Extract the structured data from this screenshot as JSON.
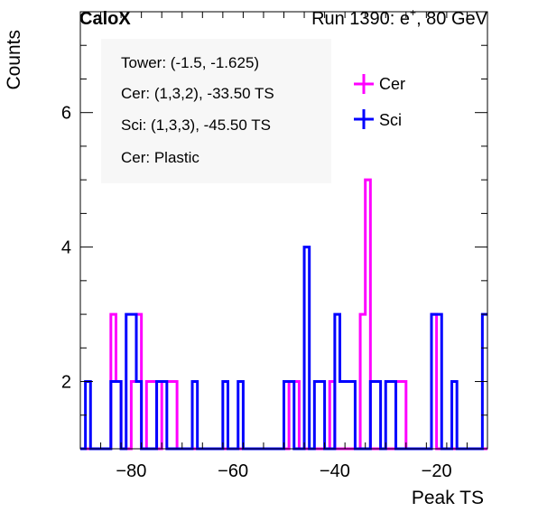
{
  "header": {
    "experiment": "CaloX",
    "run_info_main": "Run 1390: e",
    "run_info_sup": "+",
    "run_info_tail": ", 80 GeV"
  },
  "info_box": {
    "lines": [
      "Tower: (-1.5, -1.625)",
      "Cer: (1,3,2), -33.50 TS",
      "Sci: (1,3,3), -45.50 TS",
      "Cer: Plastic"
    ]
  },
  "colors": {
    "cer": "#ff00ff",
    "sci": "#0000ff",
    "axis": "#000000"
  },
  "chart_data": {
    "type": "histogram",
    "xlabel": "Peak TS",
    "ylabel": "Counts",
    "xlim": [
      -90,
      -10
    ],
    "ylim": [
      1,
      7.5
    ],
    "bin_width": 1,
    "x_ticks": [
      -80,
      -60,
      -40,
      -20
    ],
    "x_tick_labels": [
      "−80",
      "−60",
      "−40",
      "−20"
    ],
    "y_ticks": [
      2,
      4,
      6
    ],
    "y_tick_labels": [
      "2",
      "4",
      "6"
    ],
    "legend_position": "top-right",
    "series": [
      {
        "name": "Cer",
        "color": "#ff00ff",
        "bins": [
          {
            "x": -84,
            "y": 3
          },
          {
            "x": -83,
            "y": 2
          },
          {
            "x": -80,
            "y": 2
          },
          {
            "x": -79,
            "y": 3
          },
          {
            "x": -77,
            "y": 2
          },
          {
            "x": -76,
            "y": 2
          },
          {
            "x": -74,
            "y": 2
          },
          {
            "x": -73,
            "y": 2
          },
          {
            "x": -72,
            "y": 2
          },
          {
            "x": -49,
            "y": 2
          },
          {
            "x": -48,
            "y": 2
          },
          {
            "x": -41,
            "y": 2
          },
          {
            "x": -35,
            "y": 3
          },
          {
            "x": -34,
            "y": 5
          },
          {
            "x": -28,
            "y": 2
          },
          {
            "x": -27,
            "y": 2
          },
          {
            "x": -21,
            "y": 3
          }
        ]
      },
      {
        "name": "Sci",
        "color": "#0000ff",
        "bins": [
          {
            "x": -89,
            "y": 2
          },
          {
            "x": -84,
            "y": 2
          },
          {
            "x": -83,
            "y": 2
          },
          {
            "x": -81,
            "y": 3
          },
          {
            "x": -80,
            "y": 3
          },
          {
            "x": -79,
            "y": 2
          },
          {
            "x": -75,
            "y": 2
          },
          {
            "x": -74,
            "y": 2
          },
          {
            "x": -68,
            "y": 2
          },
          {
            "x": -62,
            "y": 2
          },
          {
            "x": -59,
            "y": 2
          },
          {
            "x": -50,
            "y": 2
          },
          {
            "x": -49,
            "y": 2
          },
          {
            "x": -46,
            "y": 4
          },
          {
            "x": -44,
            "y": 2
          },
          {
            "x": -43,
            "y": 2
          },
          {
            "x": -40,
            "y": 3
          },
          {
            "x": -39,
            "y": 2
          },
          {
            "x": -38,
            "y": 2
          },
          {
            "x": -37,
            "y": 2
          },
          {
            "x": -33,
            "y": 2
          },
          {
            "x": -32,
            "y": 2
          },
          {
            "x": -30,
            "y": 2
          },
          {
            "x": -29,
            "y": 2
          },
          {
            "x": -21,
            "y": 3
          },
          {
            "x": -20,
            "y": 3
          },
          {
            "x": -17,
            "y": 2
          },
          {
            "x": -11,
            "y": 3
          }
        ]
      }
    ]
  }
}
